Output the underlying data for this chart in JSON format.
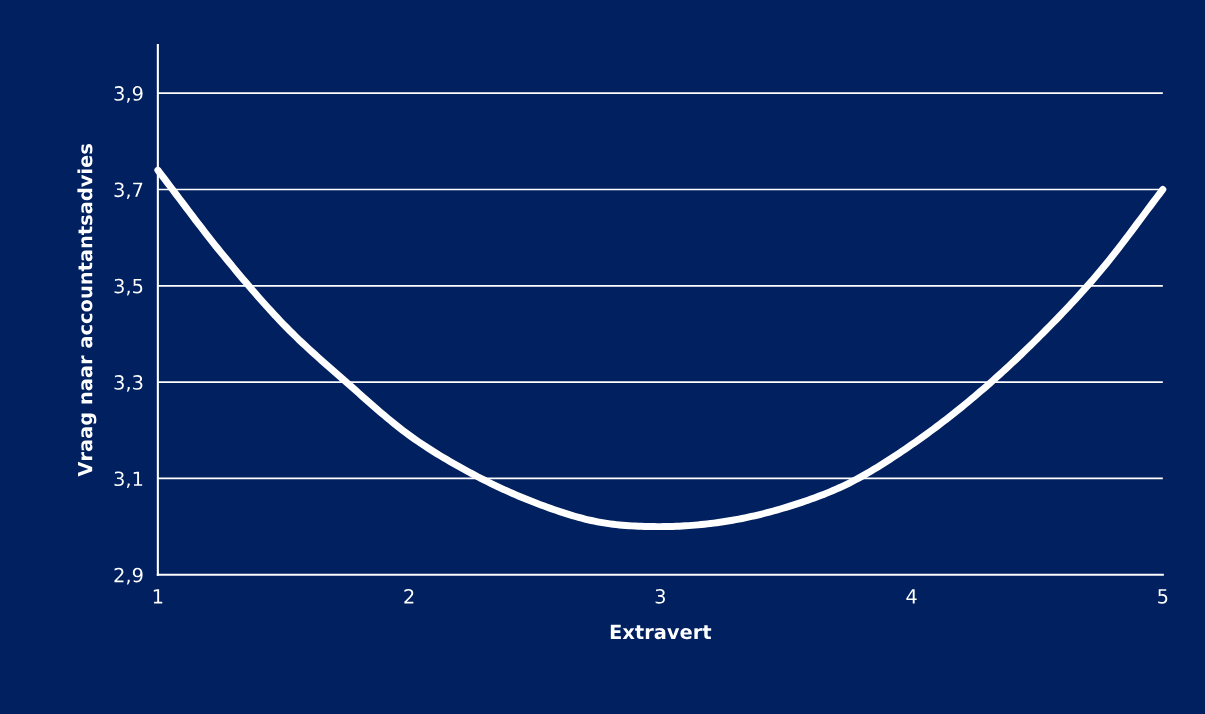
{
  "chart_data": {
    "type": "line",
    "xlabel": "Extravert",
    "ylabel": "Vraag naar accountantsadvies",
    "x": [
      1,
      1.25,
      1.5,
      1.75,
      2,
      2.25,
      2.5,
      2.75,
      3,
      3.25,
      3.5,
      3.75,
      4,
      4.25,
      4.5,
      4.75,
      5
    ],
    "series": [
      {
        "color": "#ffffff",
        "values": [
          3.74,
          3.57,
          3.42,
          3.3,
          3.19,
          3.11,
          3.05,
          3.01,
          3.0,
          3.01,
          3.04,
          3.09,
          3.17,
          3.27,
          3.39,
          3.53,
          3.7
        ]
      }
    ],
    "xlim": [
      1,
      5
    ],
    "xticks": [
      1,
      2,
      3,
      4,
      5
    ],
    "ylim": [
      2.9,
      4.0
    ],
    "yticks": [
      {
        "value": 2.9,
        "label": "2,9"
      },
      {
        "value": 3.1,
        "label": "3,1"
      },
      {
        "value": 3.3,
        "label": "3,3"
      },
      {
        "value": 3.5,
        "label": "3,5"
      },
      {
        "value": 3.7,
        "label": "3,7"
      },
      {
        "value": 3.9,
        "label": "3,9"
      }
    ],
    "grid": "y",
    "marker": "none",
    "line_style": "solid"
  }
}
